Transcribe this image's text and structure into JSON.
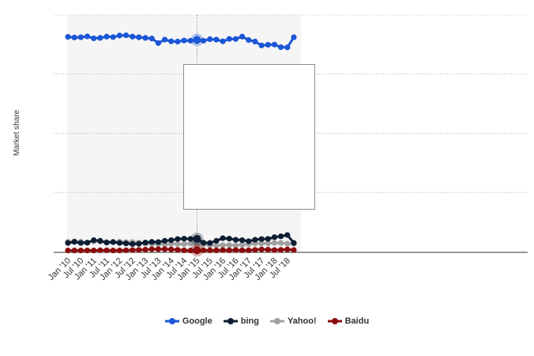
{
  "chart_data": {
    "type": "line",
    "title": "",
    "ylabel": "Market share",
    "xlabel": "",
    "x_tick_labels": [
      "Jan '10",
      "Jul '10",
      "Jan '11",
      "Jul '11",
      "Jan '12",
      "Jul '12",
      "Jan '13",
      "Jul '13",
      "Jan '14",
      "Jul '14",
      "Jan '15",
      "Jul '15",
      "Jan '16",
      "Jul '16",
      "Jan '17",
      "Jul '17",
      "Jan '18",
      "Jul '18"
    ],
    "n_points": 36,
    "ylim": [
      0,
      1
    ],
    "y_grid_values": [
      0.275,
      0.55,
      0.825
    ],
    "y_tick_labels_visible": false,
    "highlighted_index": 20,
    "legend_position": "bottom-center",
    "series": [
      {
        "name": "Google",
        "color": "#1a56d6",
        "values": [
          0.998,
          0.995,
          0.996,
          1.0,
          0.991,
          0.993,
          0.999,
          0.997,
          1.004,
          1.005,
          0.999,
          0.996,
          0.993,
          0.99,
          0.969,
          0.985,
          0.977,
          0.976,
          0.981,
          0.98,
          0.984,
          0.98,
          0.987,
          0.985,
          0.977,
          0.988,
          0.988,
          0.999,
          0.983,
          0.976,
          0.958,
          0.961,
          0.962,
          0.95,
          0.949,
          0.996
        ]
      },
      {
        "name": "bing",
        "color": "#0d1d33",
        "values": [
          0.04,
          0.045,
          0.04,
          0.041,
          0.053,
          0.05,
          0.042,
          0.044,
          0.04,
          0.038,
          0.035,
          0.036,
          0.042,
          0.045,
          0.044,
          0.05,
          0.053,
          0.058,
          0.06,
          0.059,
          0.059,
          0.041,
          0.04,
          0.05,
          0.062,
          0.06,
          0.055,
          0.053,
          0.048,
          0.055,
          0.058,
          0.059,
          0.067,
          0.071,
          0.077,
          0.04
        ]
      },
      {
        "name": "Yahoo!",
        "color": "#a0a0a0",
        "values": [
          0.045,
          0.048,
          0.046,
          0.043,
          0.047,
          0.046,
          0.044,
          0.045,
          0.046,
          0.044,
          0.044,
          0.042,
          0.037,
          0.036,
          0.034,
          0.033,
          0.036,
          0.035,
          0.035,
          0.037,
          0.038,
          0.034,
          0.029,
          0.029,
          0.03,
          0.03,
          0.029,
          0.032,
          0.034,
          0.038,
          0.038,
          0.038,
          0.04,
          0.04,
          0.037,
          0.036
        ]
      },
      {
        "name": "Baidu",
        "color": "#8b0c0c",
        "values": [
          0.005,
          0.005,
          0.005,
          0.005,
          0.005,
          0.006,
          0.006,
          0.005,
          0.005,
          0.006,
          0.007,
          0.008,
          0.009,
          0.011,
          0.011,
          0.011,
          0.01,
          0.008,
          0.006,
          0.005,
          0.006,
          0.006,
          0.006,
          0.006,
          0.007,
          0.006,
          0.007,
          0.006,
          0.006,
          0.008,
          0.01,
          0.009,
          0.007,
          0.008,
          0.01,
          0.007
        ]
      }
    ]
  },
  "legend": {
    "items": [
      {
        "label": "Google",
        "color": "#1a56d6"
      },
      {
        "label": "bing",
        "color": "#0d1d33"
      },
      {
        "label": "Yahoo!",
        "color": "#a0a0a0"
      },
      {
        "label": "Baidu",
        "color": "#8b0c0c"
      }
    ]
  }
}
